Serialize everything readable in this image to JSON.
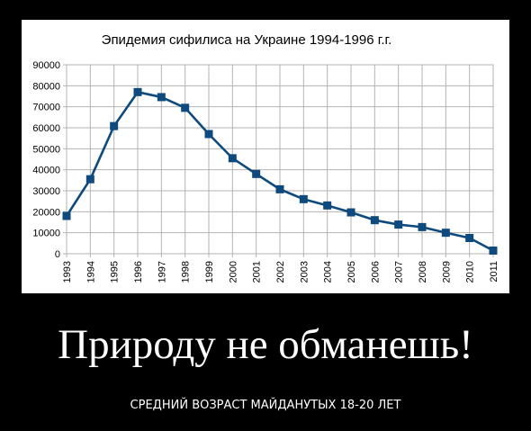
{
  "poster": {
    "headline": "Природу не обманешь!",
    "subline": "СРЕДНИЙ ВОЗРАСТ МАЙДАНУТЫХ 18-20 ЛЕТ"
  },
  "chart_data": {
    "type": "line",
    "title": "Эпидемия сифилиса на Украине 1994-1996 г.г.",
    "xlabel": "",
    "ylabel": "",
    "x": [
      "1993",
      "1994",
      "1995",
      "1996",
      "1997",
      "1998",
      "1999",
      "2000",
      "2001",
      "2002",
      "2003",
      "2004",
      "2005",
      "2006",
      "2007",
      "2008",
      "2009",
      "2010",
      "2011"
    ],
    "values": [
      18000,
      35500,
      60800,
      77000,
      74600,
      69500,
      57000,
      45500,
      38000,
      30700,
      26000,
      23000,
      19700,
      16000,
      13900,
      12700,
      10000,
      7500,
      1500
    ],
    "ylim": [
      0,
      90000
    ],
    "yticks": [
      "0",
      "10000",
      "20000",
      "30000",
      "40000",
      "50000",
      "60000",
      "70000",
      "80000",
      "90000"
    ],
    "grid": true,
    "legend": "none",
    "line_color": "#0e4a7e",
    "marker_color": "#0e4a7e"
  }
}
